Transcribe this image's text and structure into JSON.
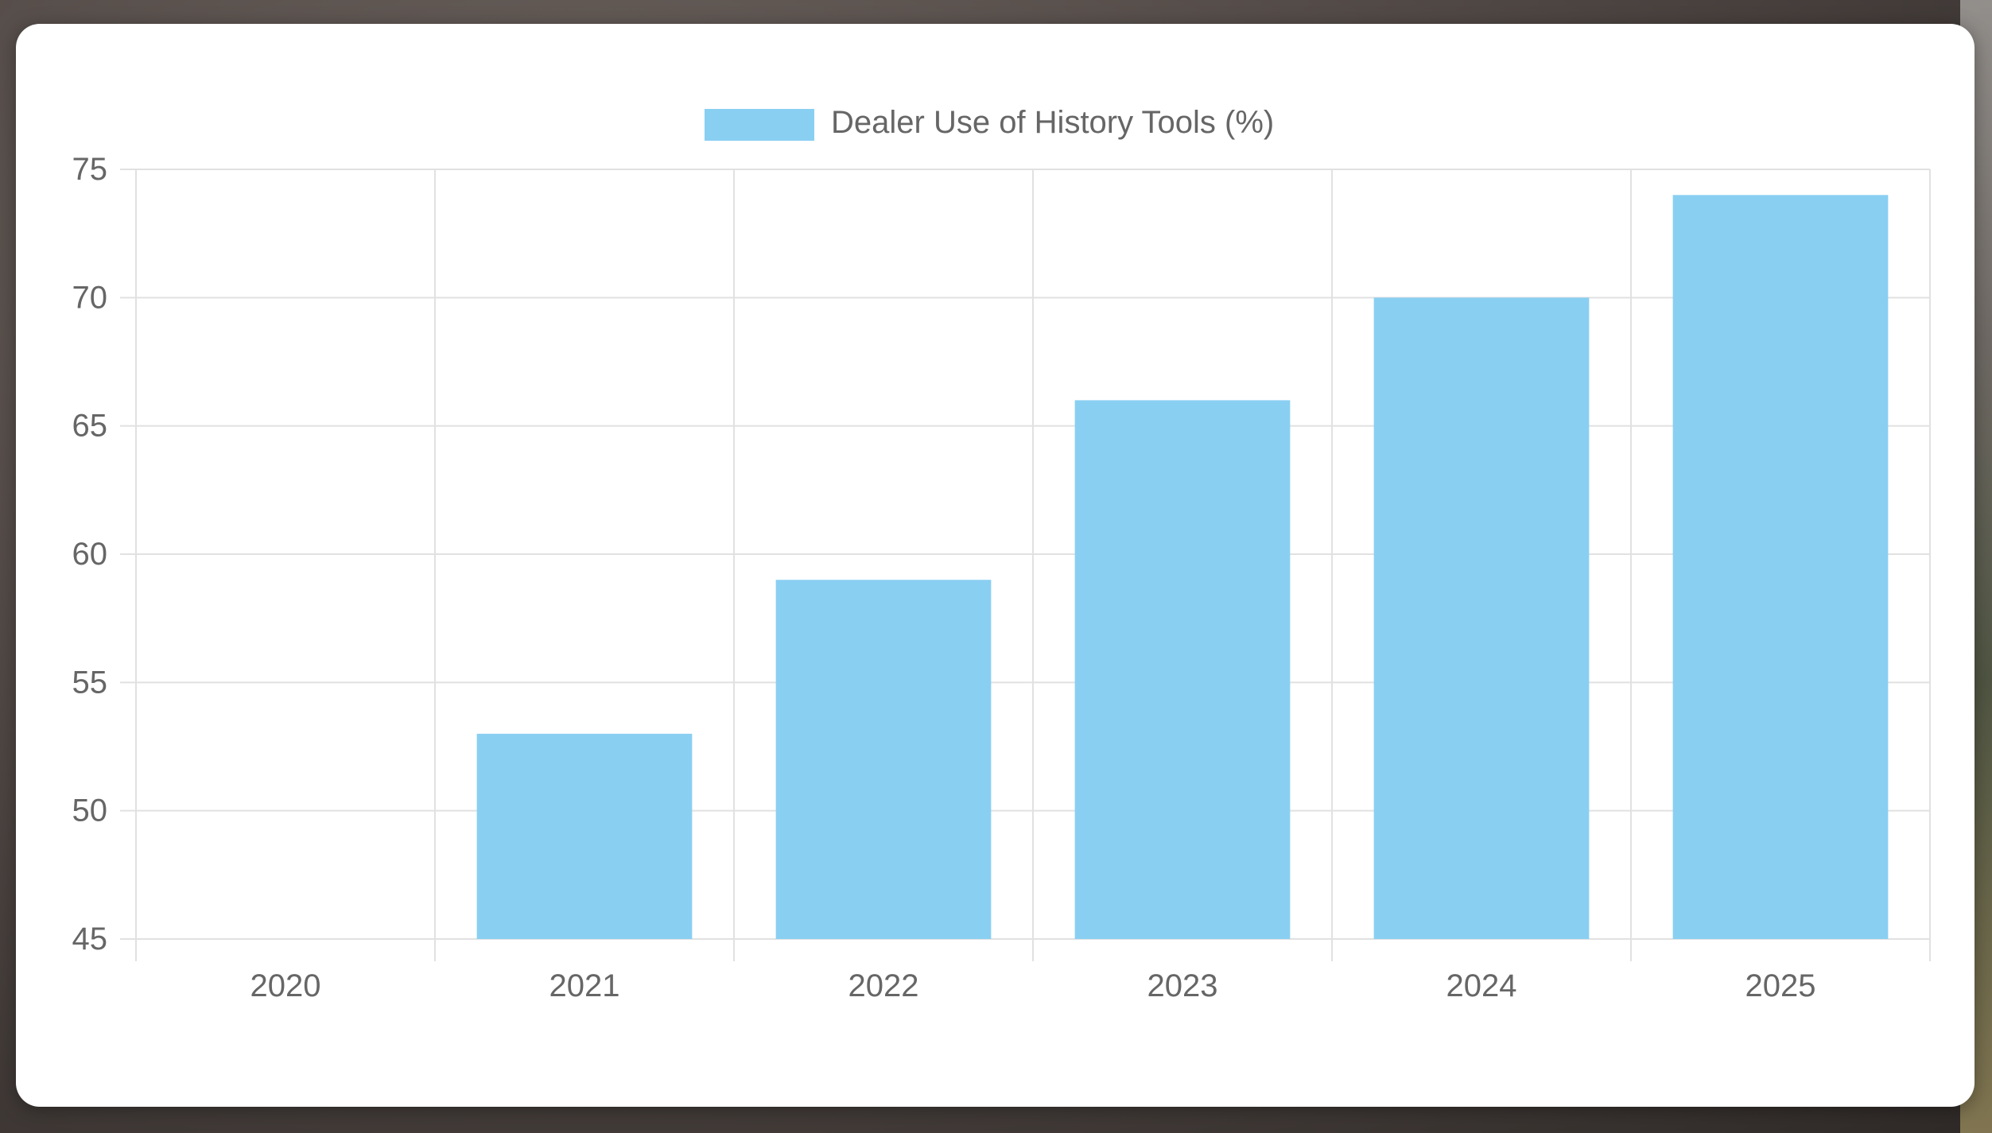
{
  "chart_data": {
    "type": "bar",
    "categories": [
      "2020",
      "2021",
      "2022",
      "2023",
      "2024",
      "2025"
    ],
    "series": [
      {
        "name": "Dealer Use of History Tools (%)",
        "values": [
          45,
          53,
          59,
          66,
          70,
          74
        ],
        "color": "#89cff2"
      }
    ],
    "ylim": [
      45,
      75
    ],
    "yticks": [
      45,
      50,
      55,
      60,
      65,
      70,
      75
    ],
    "grid": true,
    "legend_position": "top-center",
    "title": "",
    "xlabel": "",
    "ylabel": ""
  },
  "colors": {
    "grid": "#e1e1e1",
    "axis_text": "#666666",
    "bar": "#89cff2"
  }
}
